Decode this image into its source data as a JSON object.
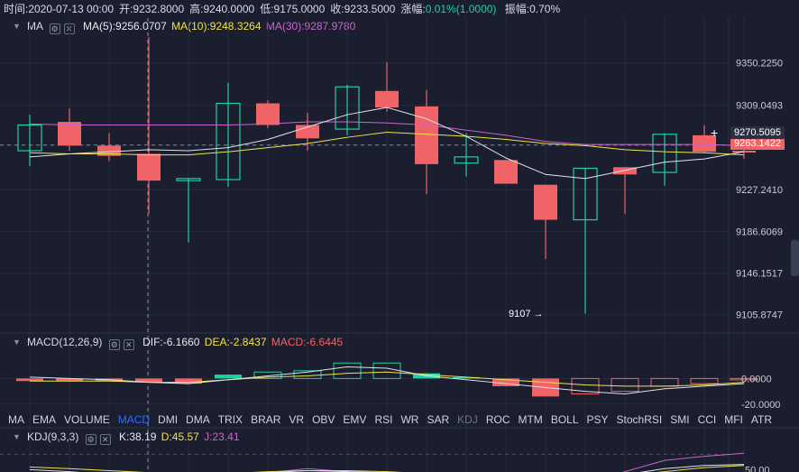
{
  "header": {
    "time_label": "时间:2020-07-13 00:00",
    "open_label": "开:9232.8000",
    "high_label": "高:9240.0000",
    "low_label": "低:9175.0000",
    "close_label": "收:9233.5000",
    "change_label": "涨幅:",
    "change_value": "0.01%(1.0000)",
    "amp_label": "振幅:0.70%"
  },
  "ma_row": {
    "name": "MA",
    "ma5": "MA(5):9256.0707",
    "ma10": "MA(10):9248.3264",
    "ma30": "MA(30):9287.9780"
  },
  "macd_row": {
    "name": "MACD(12,26,9)",
    "dif": "DIF:-6.1660",
    "dea": "DEA:-2.8437",
    "macd": "MACD:-6.6445"
  },
  "kdj_row": {
    "name": "KDJ(9,3,3)",
    "k": "K:38.19",
    "d": "D:45.57",
    "j": "J:23.41"
  },
  "indicator_tabs": [
    {
      "label": "MA"
    },
    {
      "label": "EMA"
    },
    {
      "label": "VOLUME"
    },
    {
      "label": "MACD",
      "state": "active"
    },
    {
      "label": "DMI"
    },
    {
      "label": "DMA"
    },
    {
      "label": "TRIX"
    },
    {
      "label": "BRAR"
    },
    {
      "label": "VR"
    },
    {
      "label": "OBV"
    },
    {
      "label": "EMV"
    },
    {
      "label": "RSI"
    },
    {
      "label": "WR"
    },
    {
      "label": "SAR"
    },
    {
      "label": "KDJ",
      "state": "dim"
    },
    {
      "label": "ROC"
    },
    {
      "label": "MTM"
    },
    {
      "label": "BOLL"
    },
    {
      "label": "PSY"
    },
    {
      "label": "StochRSI"
    },
    {
      "label": "SMI"
    },
    {
      "label": "CCI"
    },
    {
      "label": "MFI"
    },
    {
      "label": "ATR"
    }
  ],
  "current_price": "9270.5095",
  "current_price_hidden": "9263.1422",
  "low_marker": "9107 →",
  "plus_icon": "+",
  "colors": {
    "up": "#1fd1a1",
    "down": "#f06467",
    "ma5": "#ffffff",
    "ma10": "#f1e34a",
    "ma30": "#cc66cc",
    "background": "#1a1e2e",
    "active_tab": "#2f6bff"
  },
  "chart_data": [
    {
      "type": "candlestick",
      "title": "",
      "y_ticks": [
        "9350.2250",
        "9309.0493",
        "9270.5095",
        "9227.2410",
        "9186.6069",
        "9146.1517",
        "9105.8747"
      ],
      "ylim": [
        9096,
        9378
      ],
      "candles": [
        {
          "o": 9265,
          "h": 9300,
          "l": 9250,
          "c": 9290
        },
        {
          "o": 9293,
          "h": 9306,
          "l": 9265,
          "c": 9270
        },
        {
          "o": 9270,
          "h": 9282,
          "l": 9255,
          "c": 9260
        },
        {
          "o": 9262,
          "h": 9375,
          "l": 9204,
          "c": 9236
        },
        {
          "o": 9236,
          "h": 9238,
          "l": 9176,
          "c": 9238
        },
        {
          "o": 9237,
          "h": 9331,
          "l": 9230,
          "c": 9311
        },
        {
          "o": 9311,
          "h": 9314,
          "l": 9287,
          "c": 9290
        },
        {
          "o": 9290,
          "h": 9302,
          "l": 9265,
          "c": 9277
        },
        {
          "o": 9286,
          "h": 9329,
          "l": 9280,
          "c": 9327
        },
        {
          "o": 9323,
          "h": 9351,
          "l": 9303,
          "c": 9307
        },
        {
          "o": 9308,
          "h": 9324,
          "l": 9223,
          "c": 9252
        },
        {
          "o": 9253,
          "h": 9282,
          "l": 9240,
          "c": 9259
        },
        {
          "o": 9256,
          "h": 9256,
          "l": 9233,
          "c": 9233
        },
        {
          "o": 9232,
          "h": 9232,
          "l": 9160,
          "c": 9198
        },
        {
          "o": 9198,
          "h": 9248,
          "l": 9107,
          "c": 9248
        },
        {
          "o": 9249,
          "h": 9249,
          "l": 9204,
          "c": 9242
        },
        {
          "o": 9244,
          "h": 9282,
          "l": 9231,
          "c": 9281
        },
        {
          "o": 9280,
          "h": 9290,
          "l": 9263,
          "c": 9264
        },
        {
          "o": 9265,
          "h": 9281,
          "l": 9257,
          "c": 9264
        }
      ],
      "ma5": [
        9259,
        9262,
        9264,
        9266,
        9265,
        9268,
        9276,
        9288,
        9300,
        9307,
        9296,
        9279,
        9258,
        9242,
        9238,
        9246,
        9254,
        9257,
        9264
      ],
      "ma10": [
        9263,
        9262,
        9262,
        9261,
        9261,
        9264,
        9268,
        9272,
        9278,
        9283,
        9281,
        9279,
        9276,
        9272,
        9270,
        9266,
        9264,
        9263,
        9261
      ],
      "ma30": [
        9291,
        9290,
        9290,
        9290,
        9290,
        9290,
        9291,
        9293,
        9293,
        9292,
        9290,
        9285,
        9280,
        9274,
        9271,
        9271,
        9271,
        9271,
        9270
      ]
    },
    {
      "type": "bar",
      "title": "MACD(12,26,9)",
      "y_ticks": [
        "0.0000",
        "-20.0000"
      ],
      "ylim": [
        -25,
        22
      ],
      "hist": [
        -2,
        -2,
        -2,
        -3,
        -4,
        3,
        5,
        6,
        12,
        12,
        4,
        1,
        -6,
        -14,
        -12,
        -10,
        -6,
        -4,
        -1
      ],
      "dif": [
        1,
        0,
        -1,
        -3,
        -4,
        -1,
        2,
        5,
        9,
        8,
        2,
        -1,
        -4,
        -7,
        -10,
        -12,
        -8,
        -6,
        -4
      ],
      "dea": [
        -2,
        -2,
        -2,
        -3,
        -3,
        -1,
        1,
        2,
        4,
        5,
        3,
        1,
        -1,
        -3,
        -5,
        -6,
        -6,
        -5,
        -3
      ]
    },
    {
      "type": "line",
      "title": "KDJ(9,3,3)",
      "y_ticks": [
        "50.00"
      ],
      "ylim": [
        10,
        100
      ],
      "k": [
        50,
        46,
        40,
        36,
        32,
        38,
        44,
        48,
        46,
        44,
        38,
        34,
        30,
        28,
        30,
        40,
        52,
        58,
        60
      ],
      "d": [
        55,
        52,
        48,
        44,
        40,
        42,
        46,
        48,
        48,
        46,
        42,
        38,
        34,
        32,
        32,
        38,
        46,
        54,
        58
      ],
      "j": [
        40,
        36,
        28,
        22,
        18,
        32,
        44,
        52,
        46,
        40,
        28,
        20,
        16,
        14,
        22,
        46,
        68,
        76,
        82
      ]
    }
  ]
}
